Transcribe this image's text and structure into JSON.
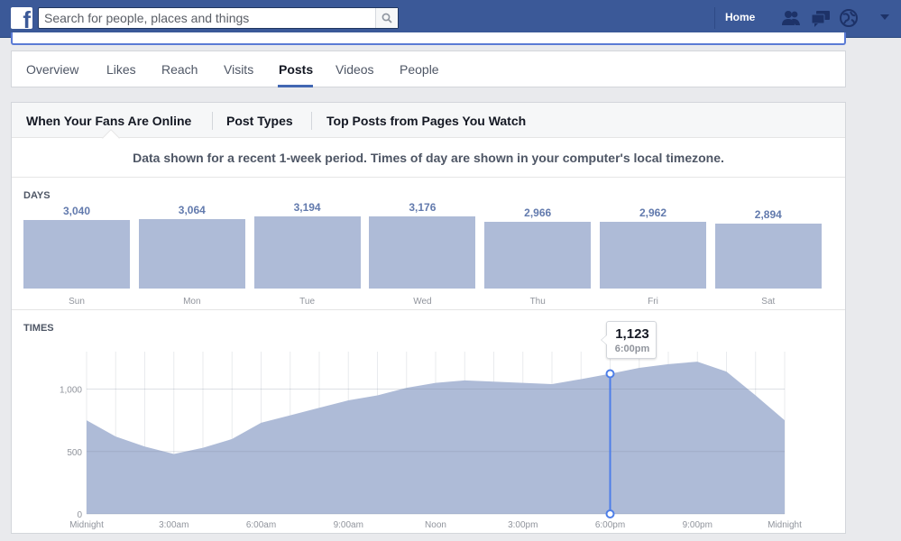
{
  "topbar": {
    "search": {
      "placeholder": "Search for people, places and things"
    },
    "home_label": "Home",
    "icons": [
      "facebook-logo",
      "search-icon",
      "friend-requests-icon",
      "messages-icon",
      "notifications-globe-icon",
      "account-dropdown-icon"
    ],
    "brand_color": "#3b5998"
  },
  "nav": {
    "tabs": [
      {
        "label": "Overview"
      },
      {
        "label": "Likes"
      },
      {
        "label": "Reach"
      },
      {
        "label": "Visits"
      },
      {
        "label": "Posts",
        "active": true
      },
      {
        "label": "Videos"
      },
      {
        "label": "People"
      }
    ]
  },
  "subtabs": [
    {
      "label": "When Your Fans Are Online",
      "active": true
    },
    {
      "label": "Post Types"
    },
    {
      "label": "Top Posts from Pages You Watch"
    }
  ],
  "notice": "Data shown for a recent 1-week period. Times of day are shown in your computer's local timezone.",
  "days_section": {
    "label": "DAYS"
  },
  "times_section": {
    "label": "TIMES"
  },
  "tooltip": {
    "value": "1,123",
    "time": "6:00pm"
  },
  "chart_data": [
    {
      "type": "bar",
      "title": "DAYS",
      "categories": [
        "Sun",
        "Mon",
        "Tue",
        "Wed",
        "Thu",
        "Fri",
        "Sat"
      ],
      "values": [
        3040,
        3064,
        3194,
        3176,
        2966,
        2962,
        2894
      ],
      "value_labels": [
        "3,040",
        "3,064",
        "3,194",
        "3,176",
        "2,966",
        "2,962",
        "2,894"
      ],
      "ylim": [
        0,
        3194
      ],
      "color": "#aebbd7"
    },
    {
      "type": "area",
      "title": "TIMES",
      "x": [
        "12am",
        "1am",
        "2am",
        "3am",
        "4am",
        "5am",
        "6am",
        "7am",
        "8am",
        "9am",
        "10am",
        "11am",
        "12pm",
        "1pm",
        "2pm",
        "3pm",
        "4pm",
        "5pm",
        "6pm",
        "7pm",
        "8pm",
        "9pm",
        "10pm",
        "11pm",
        "12am"
      ],
      "values": [
        750,
        620,
        540,
        480,
        530,
        600,
        730,
        790,
        850,
        910,
        950,
        1010,
        1050,
        1070,
        1060,
        1050,
        1040,
        1080,
        1123,
        1170,
        1200,
        1220,
        1140,
        950,
        750
      ],
      "x_tick_labels": [
        "Midnight",
        "3:00am",
        "6:00am",
        "9:00am",
        "Noon",
        "3:00pm",
        "6:00pm",
        "9:00pm",
        "Midnight"
      ],
      "y_tick_labels": [
        "0",
        "500",
        "1,000"
      ],
      "y_ticks": [
        0,
        500,
        1000
      ],
      "ylim": [
        0,
        1300
      ],
      "highlight_index": 18,
      "grid": true,
      "color": "#aebbd7",
      "highlight_color": "#4d7ee8"
    }
  ]
}
